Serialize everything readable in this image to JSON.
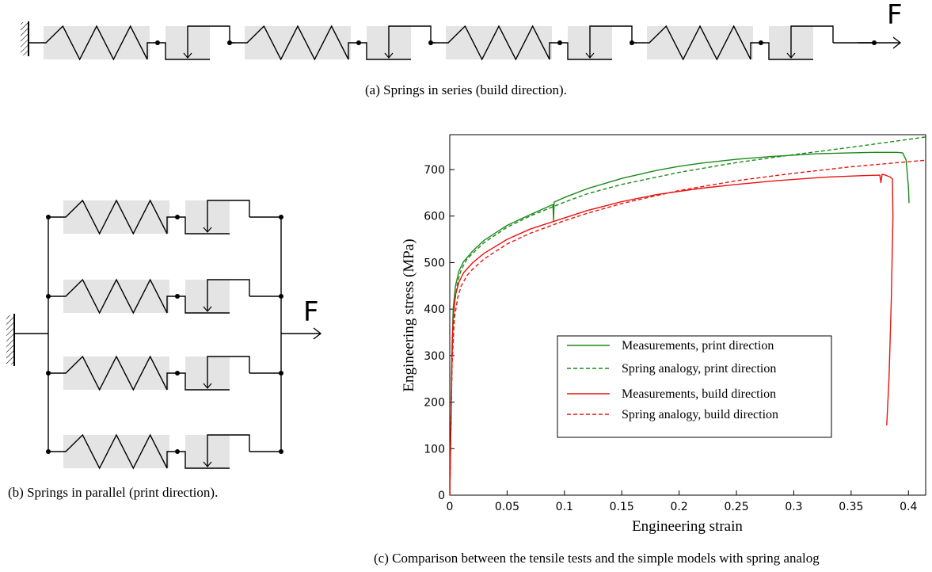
{
  "subfig_a": {
    "caption": "(a)  Springs in series (build direction).",
    "force_label": "F"
  },
  "subfig_b": {
    "caption": "(b) Springs in parallel (print direction).",
    "force_label": "F"
  },
  "subfig_c": {
    "caption": "(c)  Comparison between the tensile tests and the simple models with spring analog"
  },
  "colors": {
    "green": "#1a8a1a",
    "red": "#e8130f",
    "box_fill": "#e4e4e4"
  },
  "chart_data": {
    "type": "line",
    "xlabel": "Engineering strain",
    "ylabel": "Engineering stress (MPa)",
    "xlim": [
      0,
      0.415
    ],
    "ylim": [
      0,
      775
    ],
    "xticks": [
      0,
      0.05,
      0.1,
      0.15,
      0.2,
      0.25,
      0.3,
      0.35,
      0.4
    ],
    "xtick_labels": [
      "0",
      "0.05",
      "0.1",
      "0.15",
      "0.2",
      "0.25",
      "0.3",
      "0.35",
      "0.4"
    ],
    "yticks": [
      0,
      100,
      200,
      300,
      400,
      500,
      600,
      700
    ],
    "ytick_labels": [
      "0",
      "100",
      "200",
      "300",
      "400",
      "500",
      "600",
      "700"
    ],
    "legend_position": "center-right",
    "series": [
      {
        "name": "Measurements, print direction",
        "color": "#1a8a1a",
        "dash": "solid",
        "x": [
          0,
          0.001,
          0.002,
          0.003,
          0.005,
          0.008,
          0.012,
          0.02,
          0.03,
          0.05,
          0.07,
          0.09,
          0.0905,
          0.091,
          0.1,
          0.12,
          0.15,
          0.18,
          0.2,
          0.22,
          0.25,
          0.28,
          0.3,
          0.32,
          0.35,
          0.37,
          0.39,
          0.395,
          0.398,
          0.4,
          0.4005
        ],
        "y": [
          0,
          150,
          320,
          400,
          450,
          482,
          502,
          525,
          548,
          580,
          603,
          625,
          590,
          630,
          640,
          659,
          681,
          698,
          707,
          714,
          722,
          728,
          731,
          734,
          736,
          737,
          737,
          736,
          720,
          660,
          628
        ]
      },
      {
        "name": "Spring analogy, print direction",
        "color": "#1a8a1a",
        "dash": "dashed",
        "x": [
          0,
          0.001,
          0.002,
          0.004,
          0.007,
          0.01,
          0.015,
          0.02,
          0.03,
          0.05,
          0.07,
          0.09,
          0.1,
          0.12,
          0.15,
          0.2,
          0.25,
          0.3,
          0.35,
          0.4,
          0.415
        ],
        "y": [
          0,
          150,
          300,
          410,
          460,
          485,
          507,
          520,
          543,
          576,
          600,
          620,
          630,
          648,
          668,
          694,
          715,
          732,
          748,
          765,
          770
        ]
      },
      {
        "name": "Measurements, build direction",
        "color": "#e8130f",
        "dash": "solid",
        "x": [
          0,
          0.001,
          0.002,
          0.003,
          0.005,
          0.008,
          0.012,
          0.02,
          0.03,
          0.05,
          0.07,
          0.09,
          0.1,
          0.12,
          0.15,
          0.18,
          0.2,
          0.22,
          0.25,
          0.28,
          0.3,
          0.33,
          0.36,
          0.375,
          0.376,
          0.377,
          0.38,
          0.384,
          0.386,
          0.3865,
          0.385,
          0.383,
          0.381
        ],
        "y": [
          0,
          140,
          300,
          380,
          430,
          458,
          478,
          500,
          520,
          550,
          572,
          588,
          596,
          612,
          631,
          646,
          653,
          660,
          668,
          675,
          679,
          684,
          687,
          688,
          672,
          690,
          688,
          684,
          680,
          600,
          420,
          250,
          150
        ]
      },
      {
        "name": "Spring analogy, build direction",
        "color": "#e8130f",
        "dash": "dashed",
        "x": [
          0,
          0.001,
          0.002,
          0.004,
          0.007,
          0.01,
          0.015,
          0.02,
          0.03,
          0.05,
          0.07,
          0.09,
          0.1,
          0.12,
          0.15,
          0.2,
          0.25,
          0.3,
          0.35,
          0.4,
          0.415
        ],
        "y": [
          0,
          140,
          280,
          380,
          425,
          450,
          472,
          486,
          508,
          540,
          563,
          581,
          590,
          606,
          627,
          655,
          676,
          692,
          706,
          717,
          720
        ]
      }
    ]
  }
}
